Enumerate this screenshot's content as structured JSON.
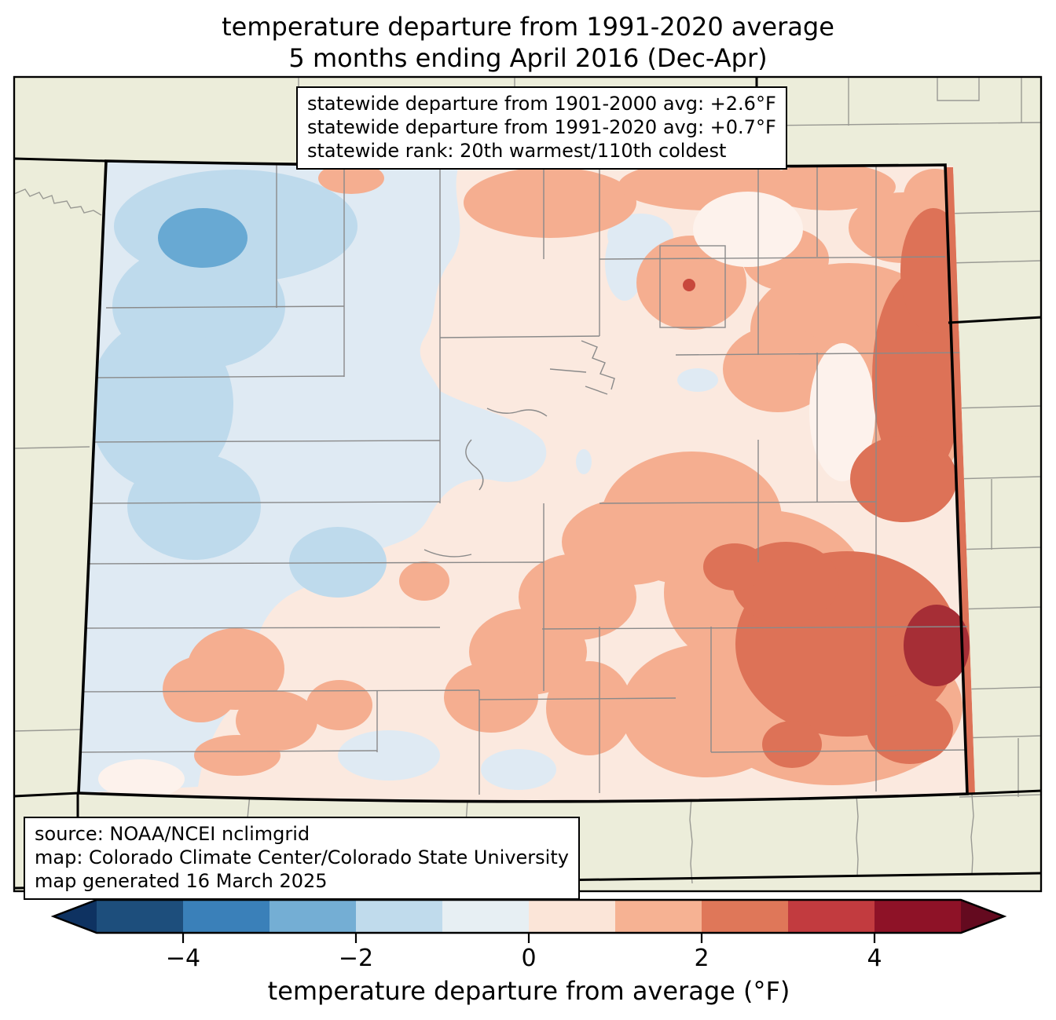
{
  "title": {
    "line1": "temperature departure from 1991-2020 average",
    "line2": "5 months ending April 2016 (Dec-Apr)"
  },
  "stats_box": {
    "lines": [
      "statewide departure from 1901-2000 avg: +2.6°F",
      "statewide departure from 1991-2020 avg: +0.7°F",
      "statewide rank: 20th warmest/110th coldest"
    ]
  },
  "source_box": {
    "lines": [
      "source: NOAA/NCEI nclimgrid",
      "map: Colorado Climate Center/Colorado State University",
      "map generated 16 March 2025"
    ]
  },
  "colorbar": {
    "label": "temperature departure from average (°F)",
    "ticks": [
      "−4",
      "−2",
      "0",
      "2",
      "4"
    ],
    "tick_values": [
      -4,
      -2,
      0,
      2,
      4
    ],
    "range": [
      -5,
      5
    ],
    "segment_colors": [
      "#1d4e7c",
      "#3a80b9",
      "#74aed4",
      "#c0dbec",
      "#e7eff3",
      "#fbe5d8",
      "#f6b293",
      "#df7759",
      "#c23b3f",
      "#8e1227"
    ],
    "under_color": "#0e3261",
    "over_color": "#640a1f"
  },
  "palette": {
    "page_bg": "#ffffff",
    "land_bg": "#ecedda",
    "county_line": "#8a8a8a",
    "state_line": "#000000",
    "band_m3": "#68a9d3",
    "band_m2": "#bedaec",
    "band_m1": "#dfeaf3",
    "band_p1": "#fbe9df",
    "band_p1_light": "#fdf2ec",
    "band_p2": "#f5ae90",
    "band_p3": "#dd7257",
    "band_p4": "#c8483c",
    "band_p5": "#a62e36"
  }
}
